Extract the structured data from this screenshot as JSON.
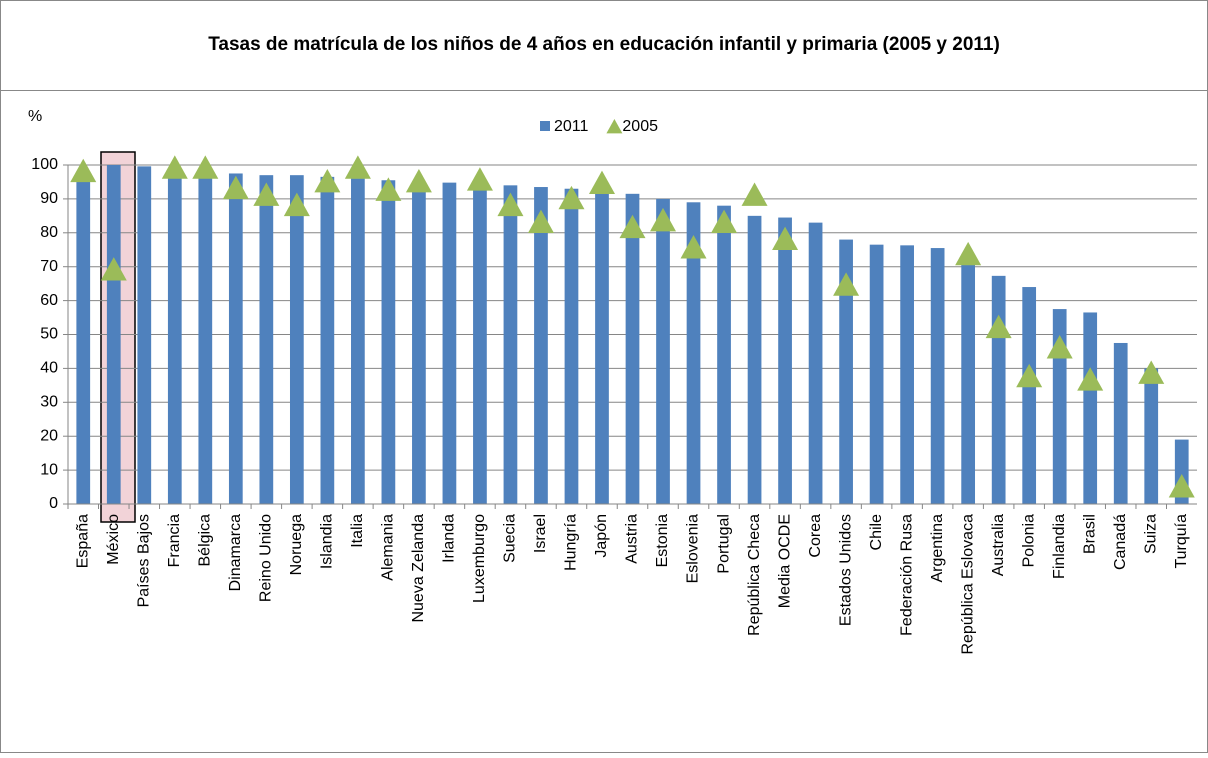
{
  "chart_data": {
    "type": "bar",
    "title": "Tasas de matrícula de los niños de 4 años en educación infantil y primaria (2005 y 2011)",
    "y_label": "%",
    "categories": [
      "España",
      "México",
      "Países Bajos",
      "Francia",
      "Bélgica",
      "Dinamarca",
      "Reino Unido",
      "Noruega",
      "Islandia",
      "Italia",
      "Alemania",
      "Nueva Zelanda",
      "Irlanda",
      "Luxemburgo",
      "Suecia",
      "Israel",
      "Hungría",
      "Japón",
      "Austria",
      "Estonia",
      "Eslovenia",
      "Portugal",
      "República Checa",
      "Media OCDE",
      "Corea",
      "Estados Unidos",
      "Chile",
      "Federación Rusa",
      "Argentina",
      "República Eslovaca",
      "Australia",
      "Polonia",
      "Finlandia",
      "Brasil",
      "Canadá",
      "Suiza",
      "Turquía"
    ],
    "series": [
      {
        "name": "2011",
        "color": "#4f81bd",
        "marker": "bar",
        "values": [
          97,
          100,
          99.6,
          99,
          98.5,
          97.5,
          97,
          97,
          96.5,
          96,
          95.5,
          95,
          94.8,
          94.5,
          94,
          93.5,
          93,
          92.5,
          91.5,
          90,
          89,
          88,
          85,
          84.5,
          83,
          78,
          76.5,
          76.3,
          75.5,
          72,
          67.3,
          64,
          57.5,
          56.5,
          47.5,
          40,
          19
        ]
      },
      {
        "name": "2005",
        "color": "#9bbb59",
        "marker": "triangle",
        "values": [
          98,
          69,
          null,
          99,
          99,
          93,
          91,
          88,
          95,
          99,
          92.5,
          95,
          null,
          95.5,
          88,
          83,
          90,
          94.5,
          81.5,
          83.5,
          75.5,
          83,
          91,
          78,
          null,
          64.5,
          null,
          null,
          null,
          73.5,
          52,
          37.5,
          46,
          36.5,
          null,
          38.5,
          5
        ]
      }
    ],
    "ylim": [
      0,
      100
    ],
    "yticks": [
      0,
      10,
      20,
      30,
      40,
      50,
      60,
      70,
      80,
      90,
      100
    ],
    "grid": true,
    "legend": "top"
  }
}
